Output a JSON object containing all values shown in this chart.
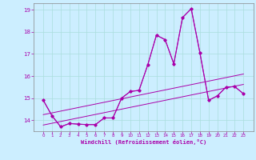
{
  "xlabel": "Windchill (Refroidissement éolien,°C)",
  "bg_color": "#cceeff",
  "grid_color": "#aadddd",
  "line_color": "#aa00aa",
  "x_values": [
    0,
    1,
    2,
    3,
    4,
    5,
    6,
    7,
    8,
    9,
    10,
    11,
    12,
    13,
    14,
    15,
    16,
    17,
    18,
    19,
    20,
    21,
    22,
    23
  ],
  "line_main": [
    14.9,
    14.2,
    13.7,
    13.85,
    13.82,
    13.8,
    13.8,
    14.1,
    14.1,
    15.0,
    15.3,
    15.35,
    16.5,
    17.85,
    17.65,
    16.55,
    18.65,
    19.05,
    17.05,
    14.9,
    15.1,
    15.5,
    15.52,
    15.2
  ],
  "line_smooth": [
    14.9,
    14.2,
    13.7,
    13.85,
    13.82,
    13.8,
    13.8,
    14.1,
    14.1,
    15.0,
    15.3,
    15.35,
    16.5,
    17.85,
    17.65,
    16.55,
    18.65,
    19.05,
    17.05,
    14.9,
    15.1,
    15.5,
    15.52,
    15.2
  ],
  "trend_high": [
    14.25,
    14.33,
    14.41,
    14.49,
    14.57,
    14.65,
    14.73,
    14.81,
    14.89,
    14.97,
    15.05,
    15.13,
    15.21,
    15.29,
    15.37,
    15.45,
    15.53,
    15.61,
    15.69,
    15.77,
    15.85,
    15.93,
    16.01,
    16.09
  ],
  "trend_low": [
    13.78,
    13.86,
    13.94,
    14.02,
    14.1,
    14.18,
    14.26,
    14.34,
    14.42,
    14.5,
    14.58,
    14.66,
    14.74,
    14.82,
    14.9,
    14.98,
    15.06,
    15.14,
    15.22,
    15.3,
    15.38,
    15.46,
    15.54,
    15.62
  ],
  "ylim": [
    13.5,
    19.3
  ],
  "yticks": [
    14,
    15,
    16,
    17,
    18,
    19
  ],
  "xticks": [
    0,
    1,
    2,
    3,
    4,
    5,
    6,
    7,
    8,
    9,
    10,
    11,
    12,
    13,
    14,
    15,
    16,
    17,
    18,
    19,
    20,
    21,
    22,
    23
  ]
}
